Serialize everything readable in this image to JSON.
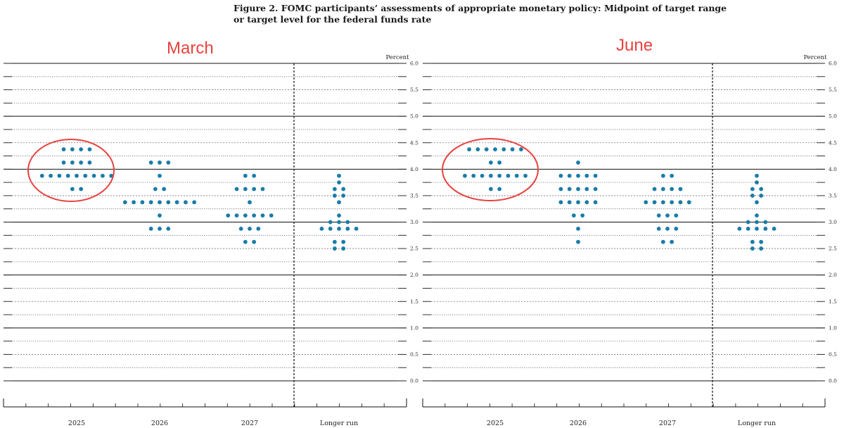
{
  "figure": {
    "title_line1": "Figure 2.  FOMC participants’ assessments of appropriate monetary policy:  Midpoint of target range",
    "title_line2": "or target level for the federal funds rate"
  },
  "colors": {
    "dot": "#1a7ca8",
    "annotation": "#e8423f"
  },
  "chart_data": [
    {
      "type": "scatter",
      "label": "March",
      "title": "March",
      "ylabel": "Percent",
      "ylim": [
        0,
        6
      ],
      "yticks": [
        "0.0",
        "0.5",
        "1.0",
        "1.5",
        "2.0",
        "2.5",
        "3.0",
        "3.5",
        "4.0",
        "4.5",
        "5.0",
        "5.5",
        "6.0"
      ],
      "categories": [
        "2025",
        "2026",
        "2027",
        "Longer run"
      ],
      "highlighted_category": "2025",
      "columns": [
        {
          "category": "2025",
          "points": [
            {
              "y": 4.375,
              "count": 4
            },
            {
              "y": 4.125,
              "count": 4
            },
            {
              "y": 3.875,
              "count": 9
            },
            {
              "y": 3.625,
              "count": 2
            }
          ]
        },
        {
          "category": "2026",
          "points": [
            {
              "y": 4.125,
              "count": 3
            },
            {
              "y": 3.875,
              "count": 1
            },
            {
              "y": 3.625,
              "count": 2
            },
            {
              "y": 3.375,
              "count": 9
            },
            {
              "y": 3.125,
              "count": 1
            },
            {
              "y": 2.875,
              "count": 3
            }
          ]
        },
        {
          "category": "2027",
          "points": [
            {
              "y": 3.875,
              "count": 2
            },
            {
              "y": 3.625,
              "count": 4
            },
            {
              "y": 3.375,
              "count": 1
            },
            {
              "y": 3.125,
              "count": 6
            },
            {
              "y": 2.875,
              "count": 3
            },
            {
              "y": 2.625,
              "count": 2
            }
          ]
        },
        {
          "category": "Longer run",
          "points": [
            {
              "y": 3.875,
              "count": 1
            },
            {
              "y": 3.75,
              "count": 1
            },
            {
              "y": 3.625,
              "count": 2
            },
            {
              "y": 3.5,
              "count": 2
            },
            {
              "y": 3.375,
              "count": 1
            },
            {
              "y": 3.125,
              "count": 1
            },
            {
              "y": 3.0,
              "count": 3
            },
            {
              "y": 2.875,
              "count": 5
            },
            {
              "y": 2.625,
              "count": 2
            },
            {
              "y": 2.5,
              "count": 2
            }
          ]
        }
      ]
    },
    {
      "type": "scatter",
      "label": "June",
      "title": "June",
      "ylabel": "Percent",
      "ylim": [
        0,
        6
      ],
      "yticks": [
        "0.0",
        "0.5",
        "1.0",
        "1.5",
        "2.0",
        "2.5",
        "3.0",
        "3.5",
        "4.0",
        "4.5",
        "5.0",
        "5.5",
        "6.0"
      ],
      "categories": [
        "2025",
        "2026",
        "2027",
        "Longer run"
      ],
      "highlighted_category": "2025",
      "columns": [
        {
          "category": "2025",
          "points": [
            {
              "y": 4.375,
              "count": 7
            },
            {
              "y": 4.125,
              "count": 2
            },
            {
              "y": 3.875,
              "count": 8
            },
            {
              "y": 3.625,
              "count": 2
            }
          ]
        },
        {
          "category": "2026",
          "points": [
            {
              "y": 4.125,
              "count": 1
            },
            {
              "y": 3.875,
              "count": 5
            },
            {
              "y": 3.625,
              "count": 5
            },
            {
              "y": 3.375,
              "count": 5
            },
            {
              "y": 3.125,
              "count": 2
            },
            {
              "y": 2.875,
              "count": 1
            },
            {
              "y": 2.625,
              "count": 1
            }
          ]
        },
        {
          "category": "2027",
          "points": [
            {
              "y": 3.875,
              "count": 2
            },
            {
              "y": 3.625,
              "count": 4
            },
            {
              "y": 3.375,
              "count": 6
            },
            {
              "y": 3.125,
              "count": 3
            },
            {
              "y": 2.875,
              "count": 3
            },
            {
              "y": 2.625,
              "count": 2
            }
          ]
        },
        {
          "category": "Longer run",
          "points": [
            {
              "y": 3.875,
              "count": 1
            },
            {
              "y": 3.75,
              "count": 1
            },
            {
              "y": 3.625,
              "count": 2
            },
            {
              "y": 3.5,
              "count": 2
            },
            {
              "y": 3.375,
              "count": 1
            },
            {
              "y": 3.125,
              "count": 1
            },
            {
              "y": 3.0,
              "count": 3
            },
            {
              "y": 2.875,
              "count": 5
            },
            {
              "y": 2.625,
              "count": 2
            },
            {
              "y": 2.5,
              "count": 2
            }
          ]
        }
      ]
    }
  ]
}
